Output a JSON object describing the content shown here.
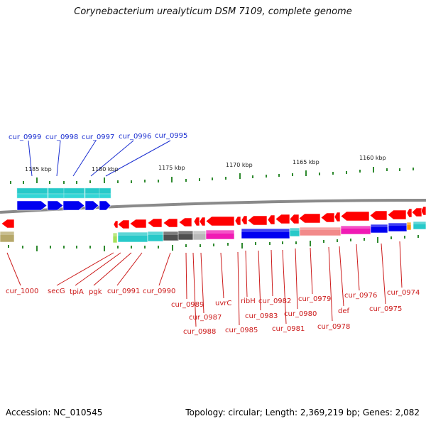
{
  "title": "Corynebacterium urealyticum DSM 7109, complete genome",
  "footer": {
    "accession": "Accession: NC_010545",
    "summary": "Topology: circular; Length: 2,369,219 bp; Genes: 2,082"
  },
  "colors": {
    "axis": "#8a8a8a",
    "tick": "#2f8a2f",
    "upper_label": "#1b2fd1",
    "lower_label": "#cc1a1a",
    "red": "#ff0000",
    "blue": "#0000f0",
    "cyan": "#27c9c9",
    "dark_gray": "#505050",
    "light_gray": "#b8b8b8",
    "magenta": "#f01ab4",
    "salmon": "#f28a8a",
    "olive": "#b6a86a",
    "lime": "#a6e05a",
    "orange": "#ff9a00"
  },
  "scale_labels": [
    {
      "text": "1185 kbp"
    },
    {
      "text": "1180 kbp"
    },
    {
      "text": "1175 kbp"
    },
    {
      "text": "1170 kbp"
    },
    {
      "text": "1165 kbp"
    },
    {
      "text": "1160 kbp"
    }
  ],
  "upper_labels": [
    {
      "text": "cur_0999"
    },
    {
      "text": "cur_0998"
    },
    {
      "text": "cur_0997"
    },
    {
      "text": "cur_0996"
    },
    {
      "text": "cur_0995"
    }
  ],
  "lower_labels": [
    {
      "text": "cur_1000"
    },
    {
      "text": "secG"
    },
    {
      "text": "tpiA"
    },
    {
      "text": "pgk"
    },
    {
      "text": "cur_0991"
    },
    {
      "text": "cur_0990"
    },
    {
      "text": "cur_0989"
    },
    {
      "text": "cur_0988"
    },
    {
      "text": "cur_0987"
    },
    {
      "text": "uvrC"
    },
    {
      "text": "cur_0985"
    },
    {
      "text": "ribH"
    },
    {
      "text": "cur_0983"
    },
    {
      "text": "cur_0982"
    },
    {
      "text": "cur_0981"
    },
    {
      "text": "cur_0980"
    },
    {
      "text": "cur_0979"
    },
    {
      "text": "cur_0978"
    },
    {
      "text": "def"
    },
    {
      "text": "cur_0976"
    },
    {
      "text": "cur_0975"
    },
    {
      "text": "cur_0974"
    }
  ]
}
